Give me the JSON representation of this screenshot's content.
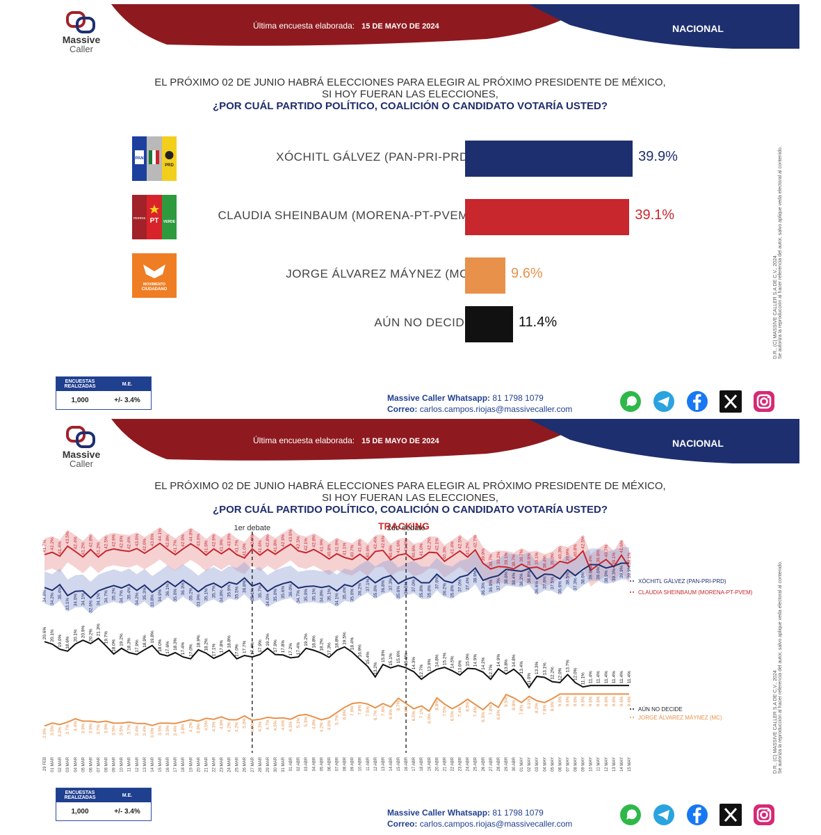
{
  "header": {
    "brand_line1": "Massive",
    "brand_line2": "Caller",
    "survey_label": "Última encuesta elaborada:",
    "survey_date": "15 DE MAYO DE 2024",
    "scope": "NACIONAL"
  },
  "question": {
    "line1": "EL PRÓXIMO 02 DE JUNIO HABRÁ ELECCIONES PARA ELEGIR AL PRÓXIMO PRESIDENTE DE MÉXICO,",
    "line2": "SI HOY FUERAN LAS ELECCIONES,",
    "line3": "¿POR CUÁL PARTIDO POLÍTICO, COALICIÓN O CANDIDATO VOTARÍA USTED?"
  },
  "party_logos": {
    "pan": "PAN",
    "prd": "PRD",
    "morena": "morena",
    "pt": "PT",
    "verde": "VERDE",
    "mc1": "MOVIMIENTO",
    "mc2": "CIUDADANO"
  },
  "survey_table": {
    "h1": "ENCUESTAS REALIZADAS",
    "h2": "M.E.",
    "v1": "1,000",
    "v2": "+/- 3.4%"
  },
  "contact": {
    "whatsapp_label": "Massive Caller Whatsapp:",
    "whatsapp": "81 1798 1079",
    "email_label": "Correo:",
    "email": "carlos.campos.riojas@massivecaller.com"
  },
  "social": [
    "whatsapp-icon",
    "telegram-icon",
    "facebook-icon",
    "x-icon",
    "instagram-icon"
  ],
  "disclaimer": {
    "line1": "D.R., (C) MASSIVE CALLER S.A DE C.V., 2024",
    "line2": "Se autoriza la reproducción al hacer referencia del autor, salvo aplique veda electoral al contenido."
  },
  "colors": {
    "navy": "#1d2f6f",
    "red": "#c7272d",
    "orange": "#e8914a",
    "black": "#111111",
    "maroon": "#7a1418"
  },
  "chart_data": [
    {
      "type": "bar",
      "orientation": "horizontal",
      "categories": [
        "XÓCHITL GÁLVEZ (PAN-PRI-PRD)",
        "CLAUDIA SHEINBAUM (MORENA-PT-PVEM)",
        "JORGE ÁLVAREZ MÁYNEZ (MC)",
        "AÚN NO DECIDE"
      ],
      "values": [
        39.9,
        39.1,
        9.6,
        11.4
      ],
      "labels": [
        "39.9%",
        "39.1%",
        "9.6%",
        "11.4%"
      ],
      "colors": [
        "#1d2f6f",
        "#c7272d",
        "#e8914a",
        "#111111"
      ],
      "xlim": [
        0,
        45
      ]
    },
    {
      "type": "line",
      "title": "TRACKING",
      "annotations": [
        "1er debate",
        "2do debate"
      ],
      "debate_index": [
        27,
        47
      ],
      "x": [
        "29 FEB",
        "01 MAR",
        "02 MAR",
        "03 MAR",
        "04 MAR",
        "05 MAR",
        "06 MAR",
        "07 MAR",
        "08 MAR",
        "09 MAR",
        "10 MAR",
        "11 MAR",
        "12 MAR",
        "13 MAR",
        "14 MAR",
        "15 MAR",
        "16 MAR",
        "17 MAR",
        "18 MAR",
        "19 MAR",
        "20 MAR",
        "21 MAR",
        "22 MAR",
        "23 MAR",
        "24 MAR",
        "25 MAR",
        "26 MAR",
        "27 MAR",
        "28 MAR",
        "29 MAR",
        "30 MAR",
        "31 MAR",
        "01 ABR",
        "02 ABR",
        "03 ABR",
        "04 ABR",
        "05 ABR",
        "06 ABR",
        "07 ABR",
        "08 ABR",
        "09 ABR",
        "10 ABR",
        "11 ABR",
        "12 ABR",
        "13 ABR",
        "14 ABR",
        "15 ABR",
        "16 ABR",
        "17 ABR",
        "18 ABR",
        "19 ABR",
        "20 ABR",
        "21 ABR",
        "22 ABR",
        "23 ABR",
        "24 ABR",
        "25 ABR",
        "26 ABR",
        "27 ABR",
        "28 ABR",
        "29 ABR",
        "30 ABR",
        "01 MAY",
        "02 MAY",
        "03 MAY",
        "04 MAY",
        "05 MAY",
        "06 MAY",
        "07 MAY",
        "08 MAY",
        "09 MAY",
        "10 MAY",
        "11 MAY",
        "12 MAY",
        "13 MAY",
        "14 MAY",
        "15 MAY"
      ],
      "ylim": [
        0,
        46
      ],
      "series": [
        {
          "name": "CLAUDIA SHEINBAUM (MORENA-PT-PVEM)",
          "color": "#c7272d",
          "values": [
            41.7,
            42.2,
            41.4,
            43.5,
            42.4,
            41.2,
            42.8,
            41.2,
            42.5,
            42.9,
            42.6,
            42.4,
            43.0,
            42.0,
            43.0,
            44.1,
            42.8,
            41.7,
            42.9,
            44.0,
            43.0,
            41.6,
            42.9,
            41.9,
            43.0,
            41.7,
            41.0,
            42.9,
            41.6,
            42.8,
            41.8,
            42.9,
            43.9,
            42.5,
            42.1,
            42.8,
            41.9,
            40.8,
            41.9,
            41.1,
            40.7,
            41.8,
            40.6,
            42.4,
            42.6,
            40.6,
            41.6,
            41.9,
            40.6,
            41.0,
            42.2,
            42.1,
            40.3,
            41.4,
            42.5,
            41.2,
            42.7,
            39.9,
            38.7,
            39.2,
            39.1,
            38.7,
            39.7,
            38.9,
            39.1,
            38.4,
            39.0,
            40.3,
            39.9,
            40.8,
            42.5,
            38.4,
            39.6,
            40.7,
            39.1,
            41.6,
            39.1
          ]
        },
        {
          "name": "XÓCHITL GÁLVEZ (PAN-PRI-PRD)",
          "color": "#1d2f6f",
          "values": [
            34.8,
            34.2,
            35.4,
            33.1,
            34.0,
            34.1,
            32.6,
            34.1,
            34.7,
            35.2,
            34.7,
            35.4,
            34.2,
            35.3,
            33.8,
            34.9,
            36.1,
            35.0,
            36.3,
            35.2,
            33.9,
            35.1,
            35.7,
            34.8,
            35.9,
            35.5,
            36.8,
            35.1,
            35.7,
            34.0,
            35.0,
            35.6,
            36.0,
            34.7,
            35.0,
            35.1,
            34.8,
            35.1,
            34.1,
            35.4,
            35.0,
            36.2,
            37.1,
            35.8,
            36.8,
            37.3,
            35.6,
            36.5,
            37.0,
            35.8,
            35.8,
            37.6,
            36.2,
            35.8,
            37.0,
            37.4,
            38.9,
            36.3,
            36.9,
            37.3,
            38.6,
            38.4,
            38.2,
            38.8,
            36.6,
            37.6,
            37.5,
            36.6,
            38.5,
            37.3,
            38.6,
            39.6,
            39.6,
            38.9,
            39.3,
            39.9,
            39.9
          ]
        },
        {
          "name": "AÚN NO DECIDE",
          "color": "#111111",
          "values": [
            20.6,
            20.1,
            19.0,
            18.6,
            20.1,
            20.9,
            20.2,
            21.3,
            19.7,
            18.0,
            19.2,
            18.3,
            17.9,
            18.9,
            19.8,
            18.0,
            17.6,
            18.3,
            17.4,
            17.0,
            18.9,
            18.2,
            17.1,
            17.8,
            18.8,
            17.0,
            17.7,
            17.4,
            17.9,
            19.2,
            17.9,
            17.8,
            17.2,
            17.4,
            19.2,
            18.8,
            18.2,
            17.3,
            18.8,
            19.5,
            18.4,
            16.9,
            15.4,
            13.2,
            15.8,
            15.1,
            15.6,
            15.1,
            14.3,
            12.7,
            13.9,
            14.8,
            15.2,
            14.5,
            13.6,
            15.0,
            14.9,
            14.2,
            12.7,
            14.9,
            13.8,
            14.8,
            13.4,
            11.0,
            13.3,
            13.1,
            12.2,
            12.0,
            13.7,
            12.0,
            11.1,
            11.4,
            11.4,
            11.4,
            11.4,
            11.4,
            11.4
          ]
        },
        {
          "name": "JORGE ÁLVAREZ MÁYNEZ (MC)",
          "color": "#e8914a",
          "values": [
            2.9,
            3.5,
            3.2,
            3.7,
            4.4,
            3.9,
            3.9,
            3.7,
            3.9,
            3.5,
            3.5,
            3.7,
            3.4,
            3.4,
            3.0,
            3.5,
            3.5,
            3.4,
            3.8,
            4.2,
            3.9,
            4.5,
            4.3,
            4.8,
            4.2,
            4.2,
            5.0,
            4.1,
            4.3,
            4.7,
            4.5,
            4.6,
            4.3,
            5.1,
            5.3,
            4.8,
            4.2,
            4.6,
            5.7,
            6.8,
            7.6,
            7.8,
            7.5,
            6.7,
            7.6,
            6.9,
            8.7,
            7.6,
            6.5,
            7.1,
            6.0,
            8.8,
            7.5,
            6.5,
            7.4,
            8.5,
            7.4,
            6.3,
            7.8,
            6.8,
            9.5,
            8.8,
            7.8,
            9.1,
            8.2,
            7.8,
            8.6,
            9.6,
            9.6,
            9.6,
            9.6,
            9.6,
            9.6,
            9.6,
            9.6,
            9.6,
            9.6
          ]
        }
      ],
      "legend": [
        "XÓCHITL GÁLVEZ (PAN-PRI-PRD)",
        "CLAUDIA SHEINBAUM (MORENA-PT-PVEM)",
        "AÚN NO DECIDE",
        "JORGE ÁLVAREZ MÁYNEZ (MC)"
      ]
    }
  ]
}
